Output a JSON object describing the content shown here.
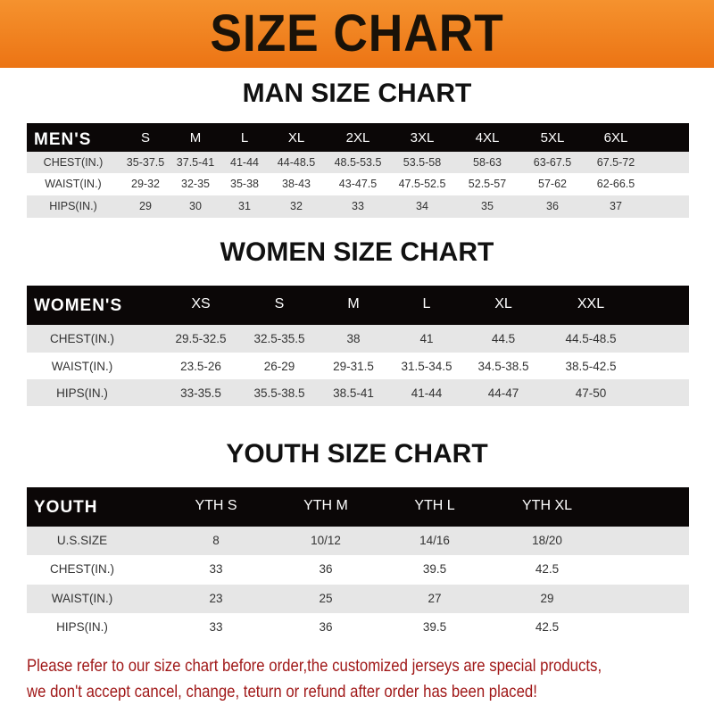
{
  "banner": "SIZE CHART",
  "men": {
    "title": "MAN SIZE CHART",
    "header": [
      "MEN'S",
      "S",
      "M",
      "L",
      "XL",
      "2XL",
      "3XL",
      "4XL",
      "5XL",
      "6XL"
    ],
    "rows": [
      [
        "CHEST(IN.)",
        "35-37.5",
        "37.5-41",
        "41-44",
        "44-48.5",
        "48.5-53.5",
        "53.5-58",
        "58-63",
        "63-67.5",
        "67.5-72"
      ],
      [
        "WAIST(IN.)",
        "29-32",
        "32-35",
        "35-38",
        "38-43",
        "43-47.5",
        "47.5-52.5",
        "52.5-57",
        "57-62",
        "62-66.5"
      ],
      [
        "HIPS(IN.)",
        "29",
        "30",
        "31",
        "32",
        "33",
        "34",
        "35",
        "36",
        "37"
      ]
    ]
  },
  "women": {
    "title": "WOMEN SIZE CHART",
    "header": [
      "WOMEN'S",
      "XS",
      "S",
      "M",
      "L",
      "XL",
      "XXL"
    ],
    "rows": [
      [
        "CHEST(IN.)",
        "29.5-32.5",
        "32.5-35.5",
        "38",
        "41",
        "44.5",
        "44.5-48.5"
      ],
      [
        "WAIST(IN.)",
        "23.5-26",
        "26-29",
        "29-31.5",
        "31.5-34.5",
        "34.5-38.5",
        "38.5-42.5"
      ],
      [
        "HIPS(IN.)",
        "33-35.5",
        "35.5-38.5",
        "38.5-41",
        "41-44",
        "44-47",
        "47-50"
      ]
    ]
  },
  "youth": {
    "title": "YOUTH SIZE CHART",
    "header": [
      "YOUTH",
      "YTH S",
      "YTH M",
      "YTH L",
      "YTH XL"
    ],
    "rows": [
      [
        "U.S.SIZE",
        "8",
        "10/12",
        "14/16",
        "18/20"
      ],
      [
        "CHEST(IN.)",
        "33",
        "36",
        "39.5",
        "42.5"
      ],
      [
        "WAIST(IN.)",
        "23",
        "25",
        "27",
        "29"
      ],
      [
        "HIPS(IN.)",
        "33",
        "36",
        "39.5",
        "42.5"
      ]
    ]
  },
  "note": {
    "line1": "Please refer to our size chart before order,the customized jerseys are special products,",
    "line2": "we don't accept cancel, change, teturn or refund after order has been placed!"
  },
  "colors": {
    "banner": "#ef7c1c",
    "header_row": "#0b0707",
    "stripe": "#e6e6e6",
    "note": "#a01818"
  }
}
